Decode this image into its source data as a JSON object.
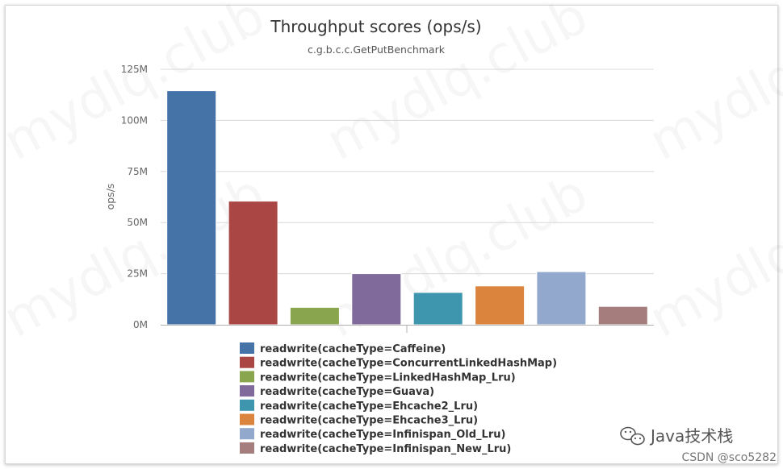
{
  "chart_data": {
    "type": "bar",
    "title": "Throughput scores (ops/s)",
    "subtitle": "c.g.b.c.c.GetPutBenchmark",
    "ylabel": "ops/s",
    "xlabel": "",
    "ylim": [
      0,
      125000000
    ],
    "yticks": [
      {
        "value": 0,
        "label": "0M"
      },
      {
        "value": 25000000,
        "label": "25M"
      },
      {
        "value": 50000000,
        "label": "50M"
      },
      {
        "value": 75000000,
        "label": "75M"
      },
      {
        "value": 100000000,
        "label": "100M"
      },
      {
        "value": 125000000,
        "label": "125M"
      }
    ],
    "grid": true,
    "legend_position": "bottom",
    "series": [
      {
        "name": "readwrite(cacheType=Caffeine)",
        "value": 114500000,
        "color": "#4572A7"
      },
      {
        "name": "readwrite(cacheType=ConcurrentLinkedHashMap)",
        "value": 60500000,
        "color": "#AA4643"
      },
      {
        "name": "readwrite(cacheType=LinkedHashMap_Lru)",
        "value": 8500000,
        "color": "#89A54E"
      },
      {
        "name": "readwrite(cacheType=Guava)",
        "value": 25000000,
        "color": "#80699B"
      },
      {
        "name": "readwrite(cacheType=Ehcache2_Lru)",
        "value": 15800000,
        "color": "#3D96AE"
      },
      {
        "name": "readwrite(cacheType=Ehcache3_Lru)",
        "value": 19000000,
        "color": "#DB843D"
      },
      {
        "name": "readwrite(cacheType=Infinispan_Old_Lru)",
        "value": 26000000,
        "color": "#92A8CD"
      },
      {
        "name": "readwrite(cacheType=Infinispan_New_Lru)",
        "value": 9000000,
        "color": "#A47D7C"
      }
    ]
  },
  "watermark": {
    "text": "mydlq.club",
    "brand": "Java技术栈",
    "csdn": "CSDN @sco5282",
    "brand_icon": "wechat-icon"
  }
}
